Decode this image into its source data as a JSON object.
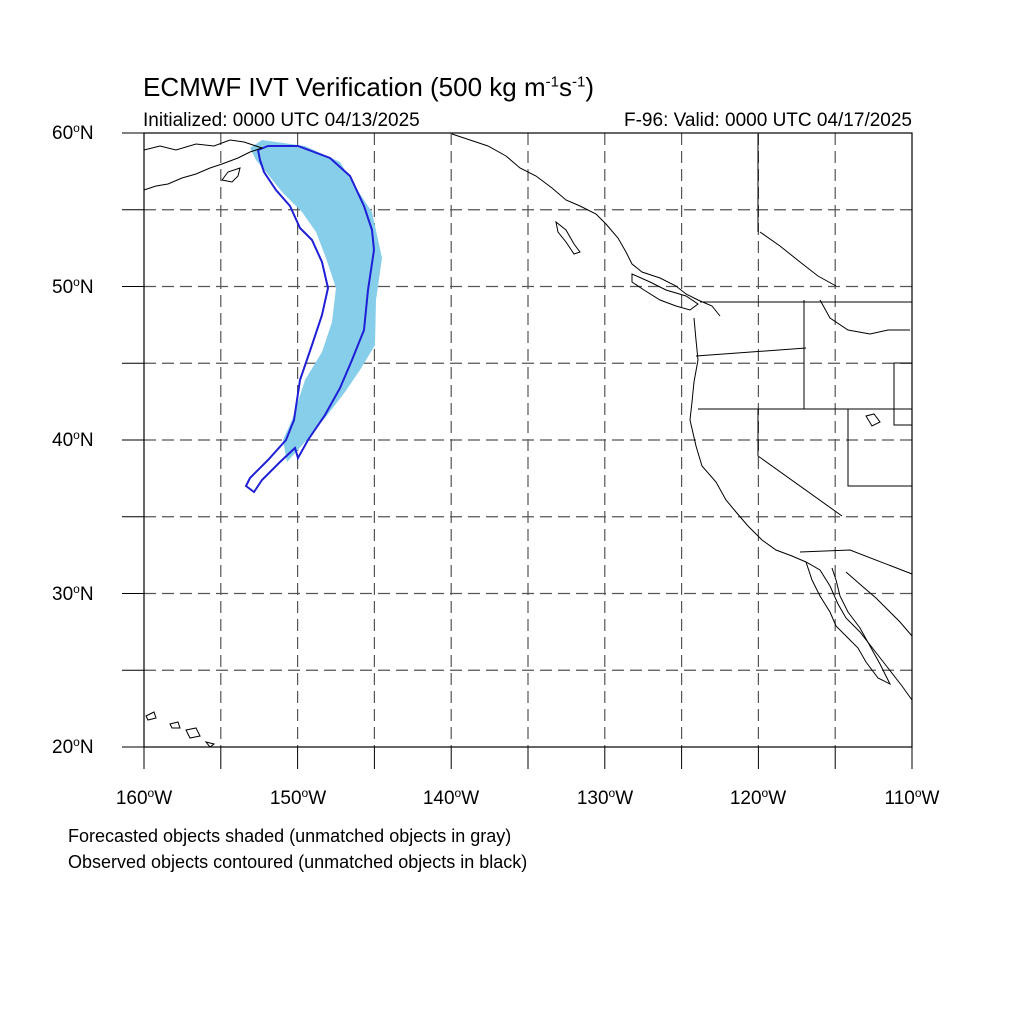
{
  "title": {
    "main": "ECMWF IVT Verification (500 kg m",
    "exp1": "-1",
    "mid": "s",
    "exp2": "-1",
    "end": ")"
  },
  "subtitle": {
    "initialized": "Initialized: 0000 UTC 04/13/2025",
    "valid": "F-96: Valid: 0000 UTC 04/17/2025"
  },
  "axes": {
    "lat_ticks": [
      {
        "num": "60",
        "hemi": "N"
      },
      {
        "num": "50",
        "hemi": "N"
      },
      {
        "num": "40",
        "hemi": "N"
      },
      {
        "num": "30",
        "hemi": "N"
      },
      {
        "num": "20",
        "hemi": "N"
      }
    ],
    "lon_ticks": [
      {
        "num": "160",
        "hemi": "W"
      },
      {
        "num": "150",
        "hemi": "W"
      },
      {
        "num": "140",
        "hemi": "W"
      },
      {
        "num": "130",
        "hemi": "W"
      },
      {
        "num": "120",
        "hemi": "W"
      },
      {
        "num": "110",
        "hemi": "W"
      }
    ],
    "lat_range": [
      20,
      60
    ],
    "lon_range": [
      -160,
      -110
    ],
    "gridline_step_deg": 5
  },
  "legend": {
    "forecast": "Forecasted objects shaded (unmatched objects in gray)",
    "observed": "Observed objects contoured (unmatched objects in black)"
  },
  "colors": {
    "forecast_fill": "#87ceeb",
    "observed_contour": "#1f1fd6",
    "coastline": "#000000",
    "grid": "#555555"
  }
}
